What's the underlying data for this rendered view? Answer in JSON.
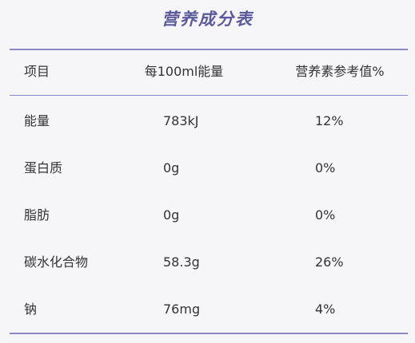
{
  "title": "营养成分表",
  "table": {
    "header": [
      "项目",
      "每100ml能量",
      "营养素参考值%"
    ],
    "rows": [
      [
        "能量",
        "783kJ",
        "12%"
      ],
      [
        "蛋白质",
        "0g",
        "0%"
      ],
      [
        "脂肪",
        "0g",
        "0%"
      ],
      [
        "碳水化合物",
        "58.3g",
        "26%"
      ],
      [
        "钠",
        "76mg",
        "4%"
      ]
    ]
  }
}
